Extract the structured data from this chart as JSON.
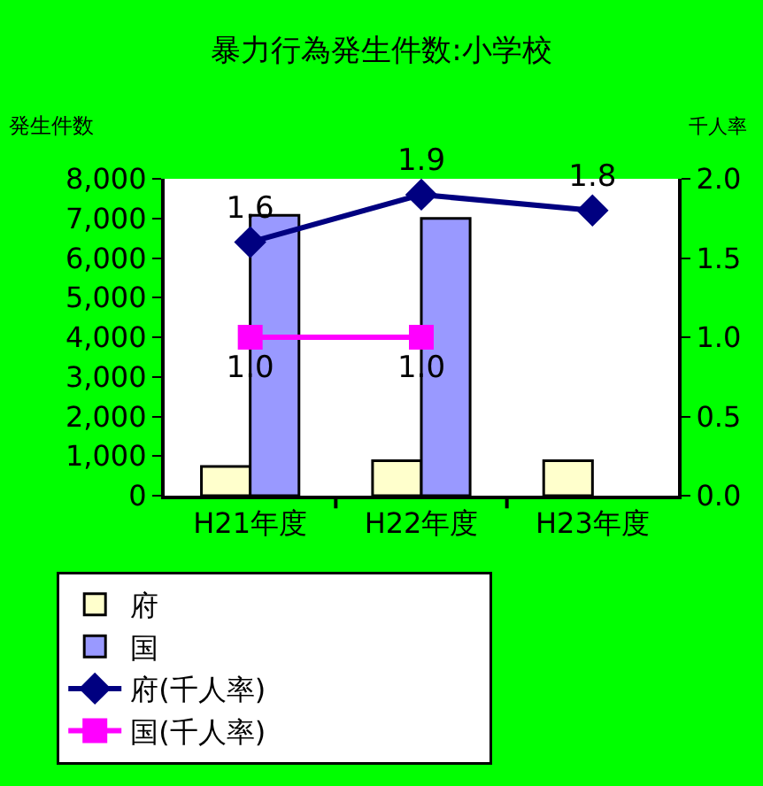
{
  "chart_data": {
    "type": "bar",
    "title": "暴力行為発生件数:小学校",
    "ylabel": "発生件数",
    "y2label": "千人率",
    "categories": [
      "H21年度",
      "H22年度",
      "H23年度"
    ],
    "series": [
      {
        "name": "府",
        "color": "#ffffcc",
        "values": [
          740,
          880,
          880
        ]
      },
      {
        "name": "国",
        "color": "#9999ff",
        "values": [
          7080,
          7000,
          null
        ]
      },
      {
        "name": "府(千人率)",
        "type": "line",
        "axis": "y2",
        "color": "#000080",
        "marker": "diamond",
        "values": [
          1.6,
          1.9,
          1.8
        ],
        "value_labels": [
          "1.6",
          "1.9",
          "1.8"
        ]
      },
      {
        "name": "国(千人率)",
        "type": "line",
        "axis": "y2",
        "color": "#ff00ff",
        "marker": "square",
        "values": [
          1.0,
          1.0,
          null
        ],
        "value_labels": [
          "1.0",
          "1.0",
          null
        ]
      }
    ],
    "ylim": [
      0,
      8000
    ],
    "yticks": [
      {
        "value": 0,
        "label": "0"
      },
      {
        "value": 1000,
        "label": "1,000"
      },
      {
        "value": 2000,
        "label": "2,000"
      },
      {
        "value": 3000,
        "label": "3,000"
      },
      {
        "value": 4000,
        "label": "4,000"
      },
      {
        "value": 5000,
        "label": "5,000"
      },
      {
        "value": 6000,
        "label": "6,000"
      },
      {
        "value": 7000,
        "label": "7,000"
      },
      {
        "value": 8000,
        "label": "8,000"
      }
    ],
    "y2lim": [
      0,
      2.0
    ],
    "y2ticks": [
      {
        "value": 0,
        "label": "0.0"
      },
      {
        "value": 0.5,
        "label": "0.5"
      },
      {
        "value": 1.0,
        "label": "1.0"
      },
      {
        "value": 1.5,
        "label": "1.5"
      },
      {
        "value": 2.0,
        "label": "2.0"
      }
    ],
    "grid": false,
    "legend": "bottom"
  }
}
